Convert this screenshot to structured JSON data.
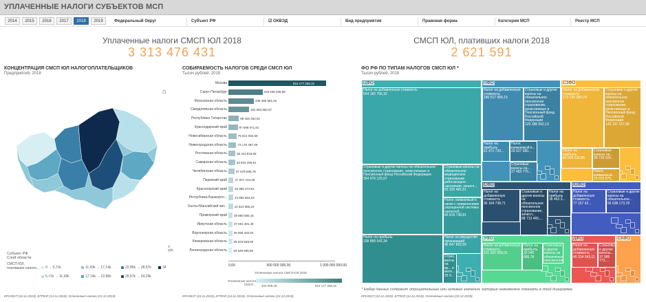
{
  "header": {
    "title": "УПЛАЧЕННЫЕ НАЛОГИ СУБЪЕКТОВ МСП"
  },
  "years": [
    "2014",
    "2015",
    "2016",
    "2017",
    "2018",
    "2019"
  ],
  "selected_year": "2018",
  "filters": [
    {
      "label": "Федеральный Округ"
    },
    {
      "label": "Субъект РФ"
    },
    {
      "label": "ОКВЭД"
    },
    {
      "label": "Вид предприятия"
    },
    {
      "label": "Правовая форма"
    },
    {
      "label": "Категория МСП"
    },
    {
      "label": "Реестр МСП"
    }
  ],
  "kpi1": {
    "label": "Уплаченные налоги СМСП ЮЛ 2018",
    "value": "3 313 476 431"
  },
  "kpi2": {
    "label": "СМСП ЮЛ, плативших налоги 2018",
    "value": "2 621 591"
  },
  "map": {
    "title": "КОНЦЕНТРАЦИЯ СМСП ЮЛ НАЛОГОПЛАТЕЛЬЩИКОВ",
    "subtitle": "Предприятий, 2018",
    "attribution": "© Qlik",
    "legend_title1": "Субъект РФ",
    "legend_title2": "Слой области",
    "legend_label": "СМСП ЮЛ, плативших налоги...",
    "legend_items": [
      {
        "label": "0 → 5,71k",
        "color": "#d7eef3"
      },
      {
        "label": "11,43k → 17,14k",
        "color": "#8fc8d8"
      },
      {
        "label": "22,86k → 28,57k",
        "color": "#3a7fa8"
      },
      {
        "label": "34",
        "color": "#0d2a4d"
      },
      {
        "label": "5,71k → 11,43k",
        "color": "#b8e0ea"
      },
      {
        "label": "17,14k → 22,86k",
        "color": "#5ea8c4"
      },
      {
        "label": "28,57k → 34,29k",
        "color": "#1d4e7a"
      }
    ]
  },
  "bars": {
    "title": "СОБИРАЕМОСТЬ НАЛОГОВ СРЕДИ СМСП ЮЛ",
    "subtitle": "Тысяч рублей, 2018",
    "axis_ticks": [
      "0,00",
      "500 000 000,00",
      "1 000 000 000,00"
    ],
    "axis_title": "Уплаченные налоги СМСП ЮЛ 2018",
    "scale_title": "Уплаченные налоги СМСП...",
    "scale_min": "404 006,28",
    "scale_max": "915 177 268,31"
  },
  "chart_data": {
    "type": "bar",
    "orientation": "horizontal",
    "categories": [
      "Москва",
      "Санкт-Петербург",
      "Московская область",
      "Свердловская область",
      "Республика Татарстан",
      "Краснодарский край",
      "Новосибирская область",
      "Нижегородская область",
      "Ростовская область",
      "Самарская область",
      "Челябинская область",
      "Пермский край",
      "Красноярский край",
      "Республика Башкорто...",
      "Ханты-Мансийский авт...",
      "Приморский край",
      "Иркутская область",
      "Воронежская область",
      "Кемеровская область",
      "Ленинградская область"
    ],
    "values": [
      915177268.31,
      319536208.98,
      238385881.02,
      192853852.57,
      98426252.91,
      87598671.81,
      75621082.58,
      73178487.39,
      65311818.68,
      63844336.51,
      57579686.78,
      47947413.46,
      45985273.51,
      44855864.04,
      42824965.18,
      38850685.16,
      37581481.46,
      36658484.54,
      35643948.83,
      33549585.85
    ],
    "value_labels": [
      "915 177 268,31",
      "319 536 208,98",
      "238 385 881,02",
      "192 853 852,57",
      "98 426 252,91",
      "87 598 671,81",
      "75 621 082,58",
      "73 178 487,39",
      "65 311 818,68",
      "63 844 336,51",
      "57 579 686,78",
      "47 947 413,46",
      "45 985 273,51",
      "44 855 864,04",
      "42 824 965,18",
      "38 850 685,16",
      "37 581 481,46",
      "36 658 484,54",
      "35 643 948,83",
      "33 549 585,85"
    ],
    "xlim": [
      0,
      1000000000
    ],
    "xlabel": "Уплаченные налоги СМСП ЮЛ 2018"
  },
  "treemap": {
    "title": "ФО РФ ПО ТИПАМ НАЛОГОВ СМСП ЮЛ *",
    "subtitle": "Тысяч рублей, 2018",
    "note": "* Набор данных содержит отрицательные или нулевые значения, которые невозможно показать в этой диаграмме.",
    "regions": [
      {
        "name": "ЦФО",
        "color": "#3aa7a8",
        "cells": [
          {
            "label": "Налог на добавленную стоимость",
            "value": "564 182 766,32"
          },
          {
            "label": "Страховые и другие взносы на обязательное пенсионное страхование, зачисляемые в Пенсионный фонд Российской Федерации",
            "value": "354 976 125,67"
          },
          {
            "label": "Страховые взносы на обязательное медицинское страхование работающего населения, зачисл...",
            "value": "83 325 481,61"
          },
          {
            "label": "Налог на прибыль",
            "value": "238 889 542,34"
          },
          {
            "label": "Налог, взимаемый в связи с применением упрощенной системы налогооб...",
            "value": "86 819 738,81"
          },
          {
            "label": "Налог на имущество организаций",
            "value": "46 847 862,55"
          },
          {
            "label": "Страх. вносы на вр... и мате...",
            "value": "25 0..."
          }
        ]
      },
      {
        "name": "ПФО",
        "color": "#3f8cb0",
        "cells": [
          {
            "label": "Налог на добавленную стоимость",
            "value": "180 517 984,15"
          },
          {
            "label": "Страховые и другие взносы на обязательное пенсионное страхование, зачисляемые в Пенсионный фонд Российской Федерации",
            "value": "129 388 092,13"
          },
          {
            "label": "Налог на прибыль",
            "value": "61 471 729..."
          },
          {
            "label": "Налог, взимаемый в...",
            "value": "29 627 580..."
          },
          {
            "label": "Страховые взносы на...",
            "value": "27 465 776..."
          }
        ]
      },
      {
        "name": "СЗФО",
        "color": "#f0b63a",
        "cells": [
          {
            "label": "Налог на добавленную стоимость",
            "value": "173 725 284,74"
          },
          {
            "label": "Страховые и другие взносы на обязательное пенсионное страхование, зачисляемые в Пенсионный фонд Российской Федерации",
            "value": "129 137 157,58"
          },
          {
            "label": "Налог на прибыль",
            "value": "83 009 532,85"
          },
          {
            "label": "Страховые взносы на...",
            "value": "28 739 029..."
          },
          {
            "label": "Налог, взимаемый...",
            "value": "24 620 879..."
          }
        ]
      },
      {
        "name": "СФО",
        "color": "#2b4f6e",
        "cells": [
          {
            "label": "Налог на добавленную стоимость",
            "value": "96 164 738,71"
          },
          {
            "label": "Страховые и другие взносы на обязательное пенсионное страхование, зачисл...",
            "value": "88 713 465,..."
          },
          {
            "label": "Налог на прибыль",
            "value": "36 463 3..."
          }
        ]
      },
      {
        "name": "ЮФО",
        "color": "#3f59b6",
        "cells": [
          {
            "label": "Налог на добавленную стоимость",
            "value": "77 157 42..."
          },
          {
            "label": "Страховые и другие взносы на обязательное...",
            "value": "56 638 173,78"
          }
        ]
      },
      {
        "name": "УФО",
        "color": "#52cf8c",
        "cells": [
          {
            "label": "Налог на добавленную стоимость",
            "value": "101 922 659,01"
          },
          {
            "label": "Налог на прибыль",
            "value": "33 045 686,78"
          },
          {
            "label": "Страховые и другие взносы на обязательное пенсионное страх...",
            "value": ""
          }
        ]
      },
      {
        "name": "ДФО",
        "color": "#e0534f",
        "cells": [
          {
            "label": "Налог на добавленную стоимость",
            "value": "40 314 343,11"
          },
          {
            "label": "Страховые и другие взносы...",
            "value": "37 985 773,..."
          }
        ]
      },
      {
        "name": "СКФО",
        "color": "#f29a4a",
        "cells": []
      }
    ]
  },
  "footers": {
    "f1": "ЕРСМСП (10.11.2019), ЕГРЮЛ (14.11.2019), Уплаченные налоги (22.12.2019)",
    "f2": "ЕРСМСП (10.11.2019), ЕГРЮЛ (14.11.2019), Уплаченные налоги (22.12.2019)",
    "f3": "ЕРСМСП (10.11.2019), ЕГРЮЛ (14.11.2019), Уплаченные налоги (22.12.2019)"
  }
}
